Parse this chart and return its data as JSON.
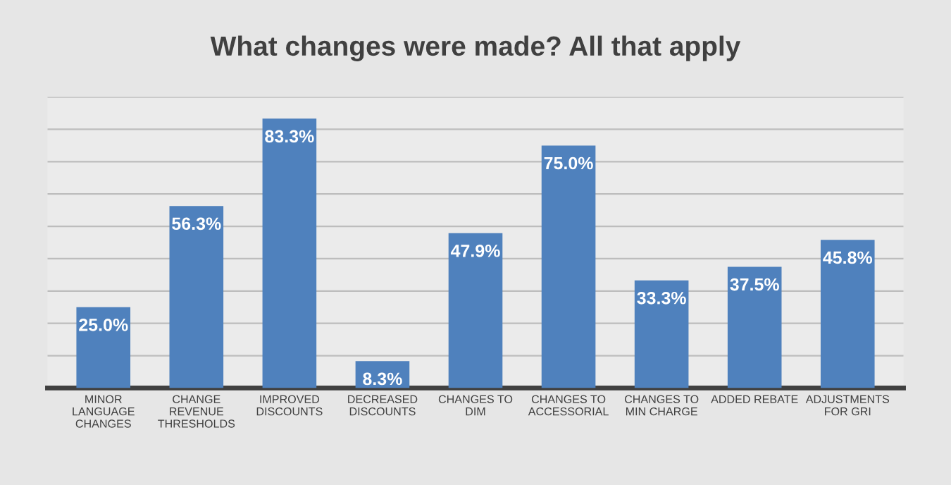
{
  "chart_data": {
    "type": "bar",
    "title": "What changes were made? All that apply",
    "categories": [
      "MINOR LANGUAGE CHANGES",
      "CHANGE REVENUE THRESHOLDS",
      "IMPROVED DISCOUNTS",
      "DECREASED DISCOUNTS",
      "CHANGES TO DIM",
      "CHANGES TO ACCESSORIAL",
      "CHANGES TO MIN CHARGE",
      "ADDED REBATE",
      "ADJUSTMENTS FOR GRI"
    ],
    "values": [
      25.0,
      56.3,
      83.3,
      8.3,
      47.9,
      75.0,
      33.3,
      37.5,
      45.8
    ],
    "value_labels": [
      "25.0%",
      "56.3%",
      "83.3%",
      "8.3%",
      "47.9%",
      "75.0%",
      "33.3%",
      "37.5%",
      "45.8%"
    ],
    "color": "#4f81bd",
    "ylim": [
      0,
      90
    ],
    "yticks": [
      {
        "value": 0,
        "label": null
      },
      {
        "value": 10,
        "label": null
      },
      {
        "value": 20,
        "label": null
      },
      {
        "value": 30,
        "label": null
      },
      {
        "value": 40,
        "label": null
      },
      {
        "value": 50,
        "label": null
      },
      {
        "value": 60,
        "label": null
      },
      {
        "value": 70,
        "label": null
      },
      {
        "value": 80,
        "label": null
      },
      {
        "value": 90,
        "label": null
      }
    ],
    "tick_labels": "x",
    "grid": "y",
    "legend": false
  }
}
